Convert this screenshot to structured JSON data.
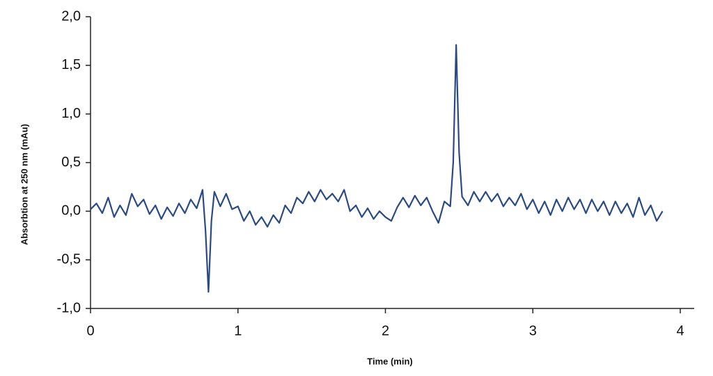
{
  "chart_data": {
    "type": "line",
    "x_label": "Time (min)",
    "y_label": "Absorbtion at 250 nm (mAu)",
    "x": [
      0,
      0.04,
      0.08,
      0.12,
      0.16,
      0.2,
      0.24,
      0.28,
      0.32,
      0.36,
      0.4,
      0.44,
      0.48,
      0.52,
      0.56,
      0.6,
      0.64,
      0.68,
      0.72,
      0.76,
      0.78,
      0.8,
      0.82,
      0.84,
      0.88,
      0.92,
      0.96,
      1.0,
      1.04,
      1.08,
      1.12,
      1.16,
      1.2,
      1.24,
      1.28,
      1.32,
      1.36,
      1.4,
      1.44,
      1.48,
      1.52,
      1.56,
      1.6,
      1.64,
      1.68,
      1.72,
      1.76,
      1.8,
      1.84,
      1.88,
      1.92,
      1.96,
      2.0,
      2.04,
      2.08,
      2.12,
      2.16,
      2.2,
      2.24,
      2.28,
      2.32,
      2.36,
      2.4,
      2.44,
      2.46,
      2.48,
      2.5,
      2.52,
      2.56,
      2.6,
      2.64,
      2.68,
      2.72,
      2.76,
      2.8,
      2.84,
      2.88,
      2.92,
      2.96,
      3.0,
      3.04,
      3.08,
      3.12,
      3.16,
      3.2,
      3.24,
      3.28,
      3.32,
      3.36,
      3.4,
      3.44,
      3.48,
      3.52,
      3.56,
      3.6,
      3.64,
      3.68,
      3.72,
      3.76,
      3.8,
      3.84,
      3.88
    ],
    "series": [
      {
        "color": "#2a4a86",
        "values": [
          0.02,
          0.08,
          -0.02,
          0.14,
          -0.06,
          0.06,
          -0.04,
          0.18,
          0.05,
          0.12,
          -0.03,
          0.06,
          -0.08,
          0.04,
          -0.05,
          0.08,
          -0.02,
          0.12,
          0.03,
          0.22,
          -0.2,
          -0.83,
          -0.1,
          0.2,
          0.05,
          0.18,
          0.02,
          0.05,
          -0.1,
          0.0,
          -0.14,
          -0.06,
          -0.16,
          -0.04,
          -0.12,
          0.06,
          -0.02,
          0.14,
          0.08,
          0.2,
          0.1,
          0.22,
          0.12,
          0.18,
          0.1,
          0.22,
          0.0,
          0.06,
          -0.06,
          0.03,
          -0.08,
          0.0,
          -0.06,
          -0.1,
          0.04,
          0.14,
          0.04,
          0.16,
          0.06,
          0.14,
          0.0,
          -0.12,
          0.1,
          0.05,
          0.5,
          1.71,
          0.6,
          0.15,
          0.06,
          0.2,
          0.1,
          0.2,
          0.1,
          0.18,
          0.05,
          0.14,
          0.06,
          0.18,
          0.02,
          0.12,
          -0.02,
          0.1,
          -0.04,
          0.12,
          0.0,
          0.14,
          0.02,
          0.12,
          -0.02,
          0.12,
          0.0,
          0.1,
          -0.04,
          0.1,
          -0.02,
          0.08,
          -0.06,
          0.14,
          -0.04,
          0.06,
          -0.1,
          0.0
        ]
      }
    ],
    "xlim": [
      0,
      4
    ],
    "xticks": [
      0,
      1,
      2,
      3,
      4
    ],
    "ylim": [
      -1,
      2
    ],
    "yticks": [
      {
        "value": -1,
        "label": "-1,0"
      },
      {
        "value": -0.5,
        "label": "-0,5"
      },
      {
        "value": 0,
        "label": "0,0"
      },
      {
        "value": 0.5,
        "label": "0,5"
      },
      {
        "value": 1,
        "label": "1,0"
      },
      {
        "value": 1.5,
        "label": "1,5"
      },
      {
        "value": 2,
        "label": "2,0"
      }
    ],
    "grid": false
  }
}
